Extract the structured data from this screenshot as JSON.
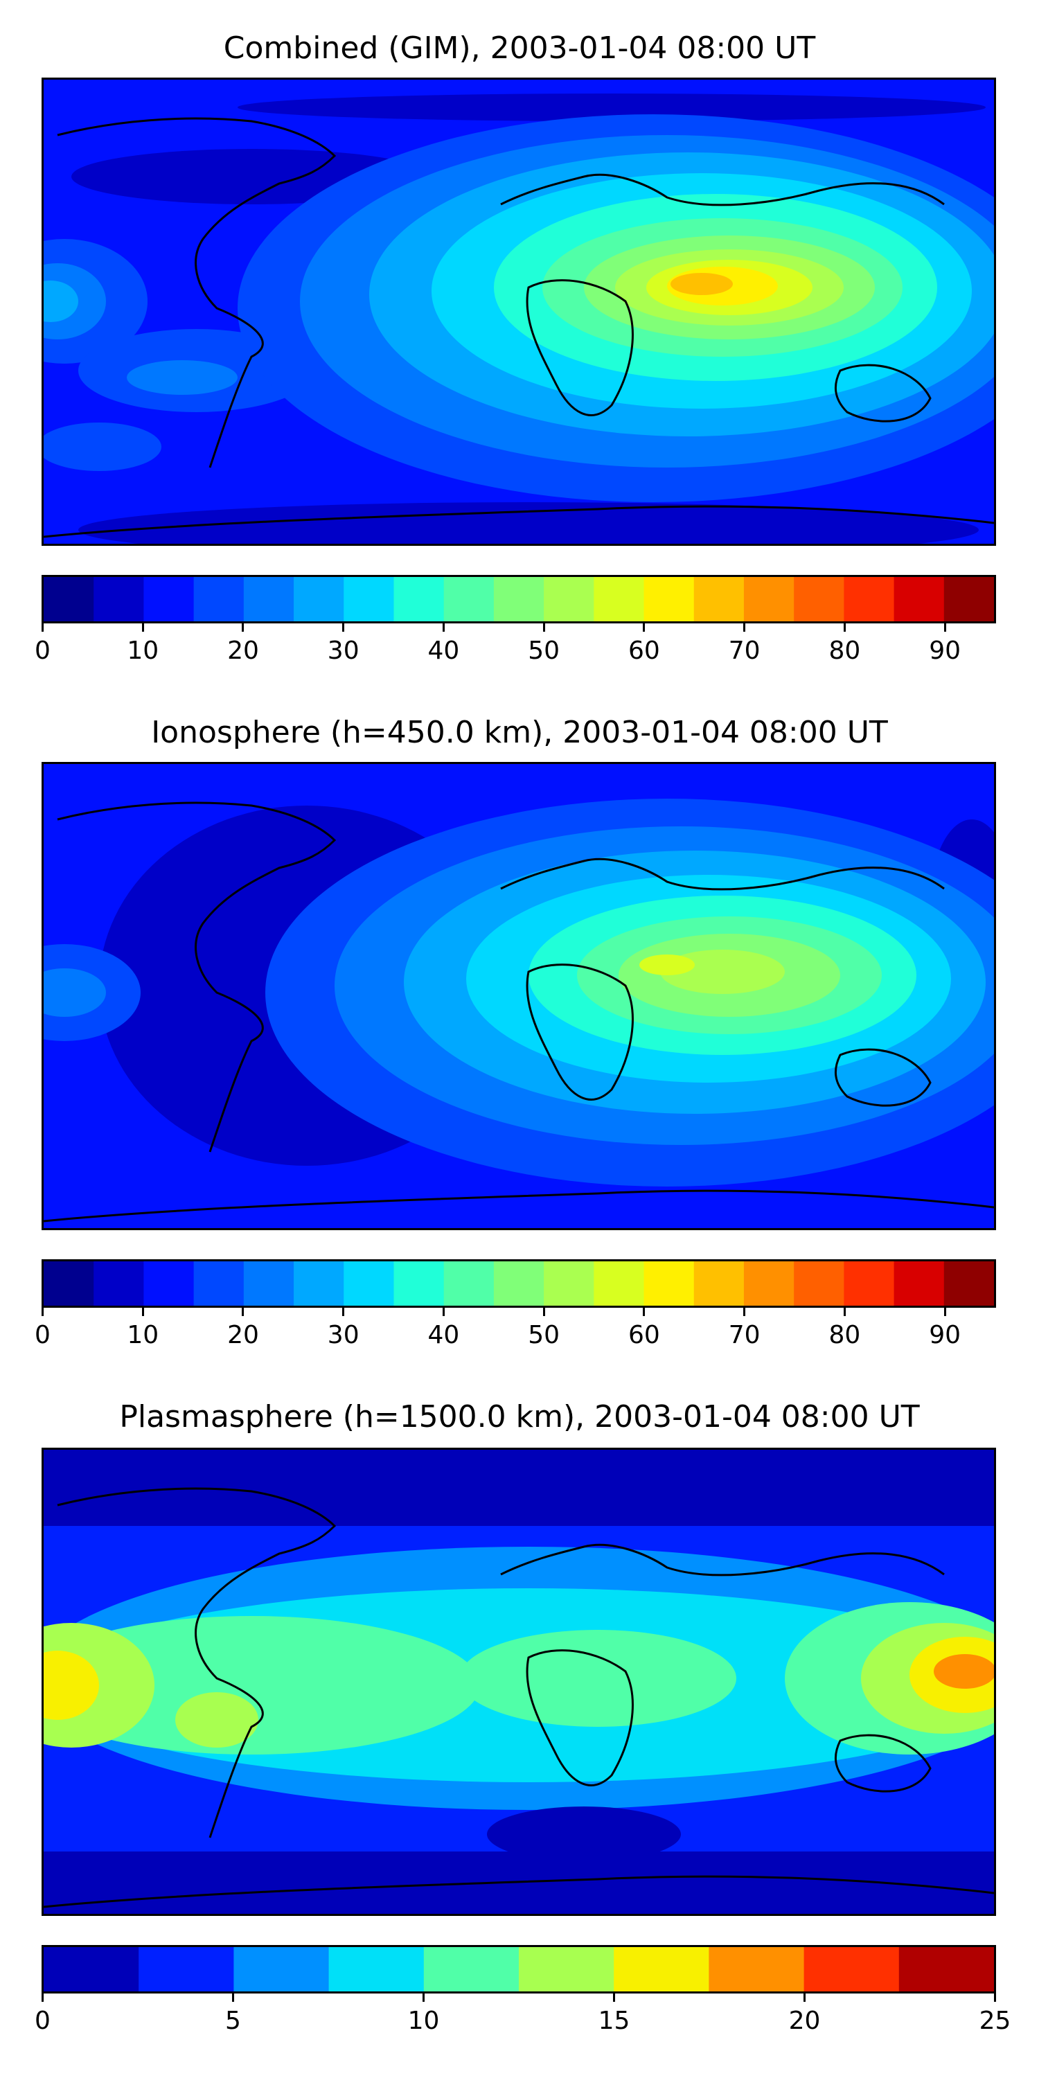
{
  "panels": [
    {
      "title": "Combined (GIM), 2003-01-04 08:00 UT",
      "levels": [
        0,
        5,
        10,
        15,
        20,
        25,
        30,
        35,
        40,
        45,
        50,
        55,
        60,
        65,
        70,
        75,
        80,
        85,
        90,
        95
      ],
      "colors": [
        "#00008f",
        "#0000c8",
        "#0010ff",
        "#0048ff",
        "#0078ff",
        "#00a8ff",
        "#00d8ff",
        "#20ffd8",
        "#50ffa8",
        "#80ff78",
        "#aaff50",
        "#d8ff20",
        "#fff000",
        "#ffc000",
        "#ff9000",
        "#ff6000",
        "#ff3000",
        "#d80000",
        "#8f0000"
      ],
      "ticks": [
        0,
        10,
        20,
        30,
        40,
        50,
        60,
        70,
        80,
        90
      ],
      "tick_labels": [
        "0",
        "10",
        "20",
        "30",
        "40",
        "50",
        "60",
        "70",
        "80",
        "90"
      ],
      "background_color": "#0010ff"
    },
    {
      "title": "Ionosphere  (h=450.0 km), 2003-01-04 08:00 UT",
      "levels": [
        0,
        5,
        10,
        15,
        20,
        25,
        30,
        35,
        40,
        45,
        50,
        55,
        60,
        65,
        70,
        75,
        80,
        85,
        90,
        95
      ],
      "colors": [
        "#00008f",
        "#0000c8",
        "#0010ff",
        "#0048ff",
        "#0078ff",
        "#00a8ff",
        "#00d8ff",
        "#20ffd8",
        "#50ffa8",
        "#80ff78",
        "#aaff50",
        "#d8ff20",
        "#fff000",
        "#ffc000",
        "#ff9000",
        "#ff6000",
        "#ff3000",
        "#d80000",
        "#8f0000"
      ],
      "ticks": [
        0,
        10,
        20,
        30,
        40,
        50,
        60,
        70,
        80,
        90
      ],
      "tick_labels": [
        "0",
        "10",
        "20",
        "30",
        "40",
        "50",
        "60",
        "70",
        "80",
        "90"
      ],
      "background_color": "#0000c8"
    },
    {
      "title": "Plasmasphere (h=1500.0 km), 2003-01-04 08:00 UT",
      "levels": [
        0,
        2.5,
        5,
        7.5,
        10,
        12.5,
        15,
        17.5,
        20,
        22.5,
        25
      ],
      "colors": [
        "#0000b8",
        "#0020ff",
        "#0090ff",
        "#00e0f8",
        "#50ffa8",
        "#a8ff50",
        "#f8f000",
        "#ff9000",
        "#ff3000",
        "#b00000"
      ],
      "ticks": [
        0,
        5,
        10,
        15,
        20,
        25
      ],
      "tick_labels": [
        "0",
        "5",
        "10",
        "15",
        "20",
        "25"
      ],
      "background_color": "#0090ff"
    }
  ],
  "coastline_color": "#000000"
}
